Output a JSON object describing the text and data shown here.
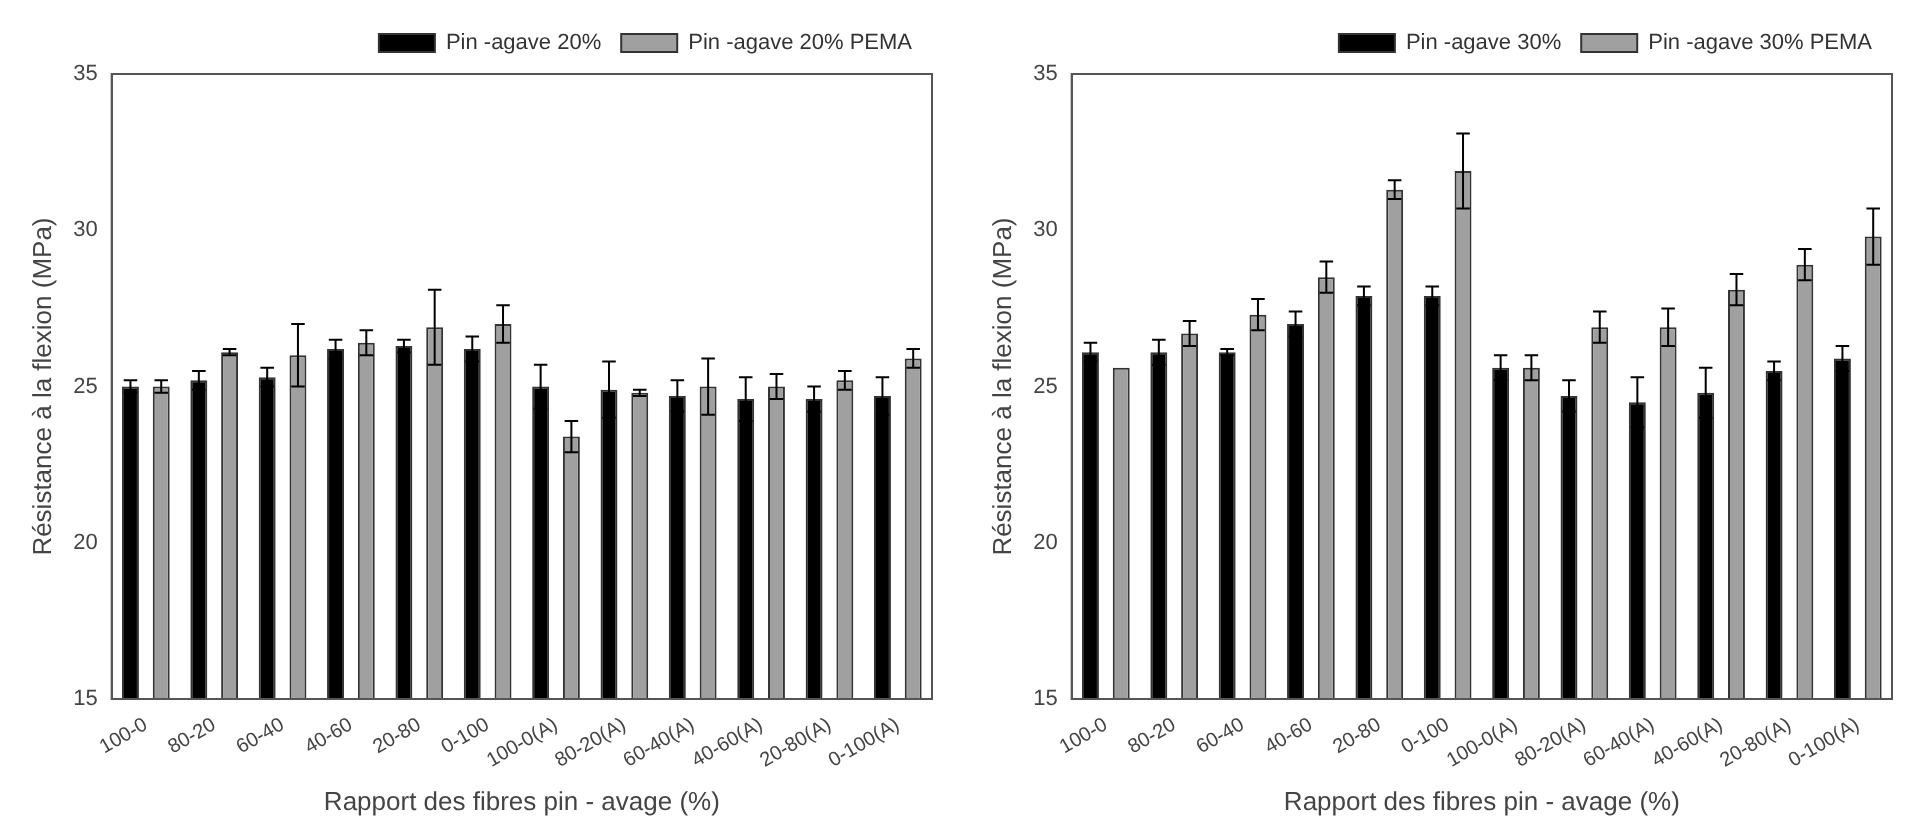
{
  "chart_data": [
    {
      "type": "bar",
      "xlabel": "Rapport des fibres pin - avage (%)",
      "ylabel": "Résistance à la flexion (MPa)",
      "categories": [
        "100-0",
        "80-20",
        "60-40",
        "40-60",
        "20-80",
        "0-100",
        "100-0(A)",
        "80-20(A)",
        "60-40(A)",
        "40-60(A)",
        "20-80(A)",
        "0-100(A)"
      ],
      "series": [
        {
          "name": "Pin -agave 20%",
          "color": "#000000",
          "values": [
            25.0,
            25.2,
            25.3,
            26.2,
            26.3,
            26.2,
            25.0,
            24.9,
            24.7,
            24.6,
            24.6,
            24.7
          ],
          "errors": [
            0.2,
            0.3,
            0.3,
            0.3,
            0.2,
            0.4,
            0.7,
            0.9,
            0.5,
            0.7,
            0.4,
            0.6
          ]
        },
        {
          "name": "Pin -agave 20% PEMA",
          "color": "#a0a0a0",
          "values": [
            25.0,
            26.1,
            26.0,
            26.4,
            26.9,
            27.0,
            23.4,
            24.8,
            25.0,
            25.0,
            25.2,
            25.9
          ],
          "errors": [
            0.2,
            0.1,
            1.0,
            0.4,
            1.2,
            0.6,
            0.5,
            0.1,
            0.9,
            0.4,
            0.3,
            0.3
          ]
        }
      ],
      "ylim": [
        15,
        35
      ],
      "yticks": [
        15,
        20,
        25,
        30,
        35
      ],
      "legend": "top right"
    },
    {
      "type": "bar",
      "xlabel": "Rapport des fibres pin - avage (%)",
      "ylabel": "Résistance à la flexion (MPa)",
      "categories": [
        "100-0",
        "80-20",
        "60-40",
        "40-60",
        "20-80",
        "0-100",
        "100-0(A)",
        "80-20(A)",
        "60-40(A)",
        "40-60(A)",
        "20-80(A)",
        "0-100(A)"
      ],
      "series": [
        {
          "name": "Pin -agave 30%",
          "color": "#000000",
          "values": [
            26.1,
            26.1,
            26.1,
            27.0,
            27.9,
            27.9,
            25.6,
            24.7,
            24.5,
            24.8,
            25.5,
            25.9
          ],
          "errors": [
            0.3,
            0.4,
            0.1,
            0.4,
            0.3,
            0.3,
            0.4,
            0.5,
            0.8,
            0.8,
            0.3,
            0.4
          ]
        },
        {
          "name": "Pin -agave 30% PEMA",
          "color": "#a0a0a0",
          "values": [
            25.6,
            26.7,
            27.3,
            28.5,
            31.3,
            31.9,
            25.6,
            26.9,
            26.9,
            28.1,
            28.9,
            29.8
          ],
          "errors": [
            null,
            0.4,
            0.5,
            0.5,
            0.3,
            1.2,
            0.4,
            0.5,
            0.6,
            0.5,
            0.5,
            0.9
          ]
        }
      ],
      "ylim": [
        15,
        35
      ],
      "yticks": [
        15,
        20,
        25,
        30,
        35
      ],
      "legend": "top right"
    }
  ]
}
